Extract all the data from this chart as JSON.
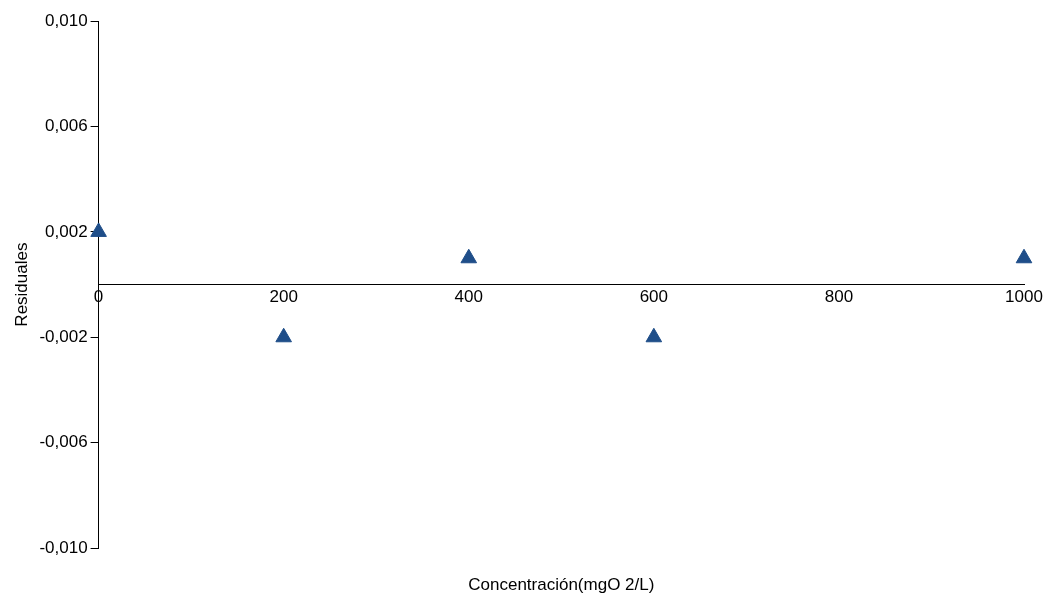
{
  "chart_data": {
    "type": "scatter",
    "xlabel": "Concentración(mgO 2/L)",
    "ylabel": "Residuales",
    "x": [
      0,
      200,
      400,
      600,
      1000
    ],
    "series": [
      {
        "color": "#1f4e89",
        "values": [
          0.002,
          -0.002,
          0.001,
          -0.002,
          0.001
        ]
      }
    ],
    "marker": "triangle",
    "xlim": [
      0,
      1000
    ],
    "xticks": [
      0,
      200,
      400,
      600,
      800,
      1000
    ],
    "ylim": [
      -0.01,
      0.01
    ],
    "yticks": [
      {
        "value": 0.01,
        "label": "0,010"
      },
      {
        "value": 0.006,
        "label": "0,006"
      },
      {
        "value": 0.002,
        "label": "0,002"
      },
      {
        "value": -0.002,
        "label": "-0,002"
      },
      {
        "value": -0.006,
        "label": "-0,006"
      },
      {
        "value": -0.01,
        "label": "-0,010"
      }
    ],
    "grid": false,
    "legend": false
  }
}
